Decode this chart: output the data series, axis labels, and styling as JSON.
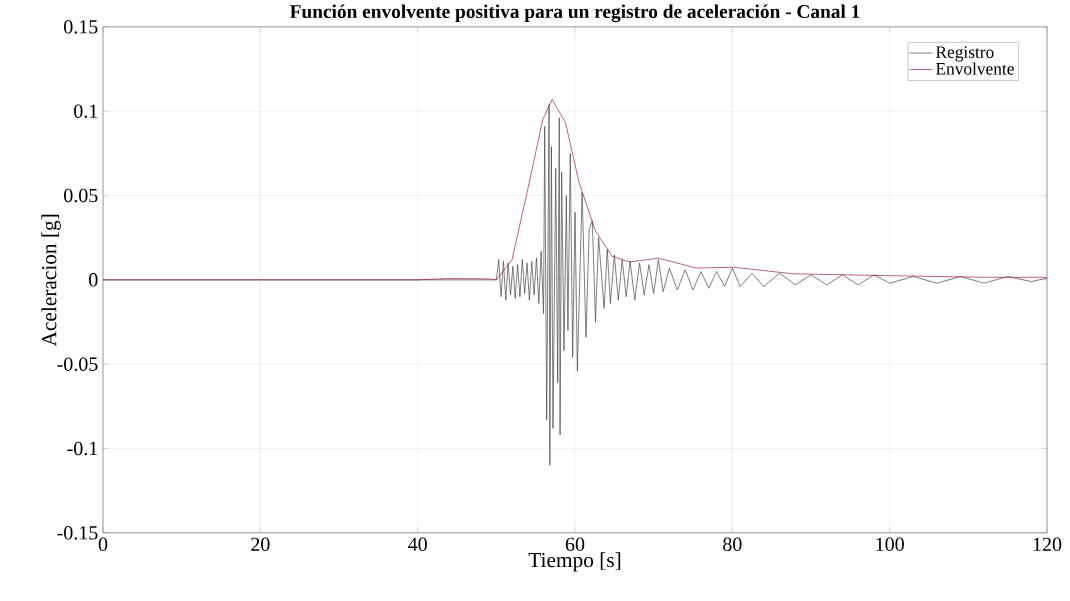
{
  "chart_data": {
    "type": "line",
    "title": "Función envolvente positiva para un registro de aceleración - Canal 1",
    "xlabel": "Tiempo [s]",
    "ylabel": "Aceleracion [g]",
    "xlim": [
      0,
      120
    ],
    "ylim": [
      -0.15,
      0.15
    ],
    "xticks": [
      0,
      20,
      40,
      60,
      80,
      100,
      120
    ],
    "yticks": [
      -0.15,
      -0.1,
      -0.05,
      0,
      0.05,
      0.1,
      0.15
    ],
    "grid": true,
    "legend": "top right",
    "series": [
      {
        "name": "Registro",
        "color": "#404040",
        "x": [
          0,
          38,
          40,
          44,
          48,
          50,
          50.3,
          50.6,
          50.9,
          51.2,
          51.5,
          51.8,
          52.1,
          52.4,
          52.7,
          53.0,
          53.3,
          53.6,
          53.9,
          54.2,
          54.5,
          54.8,
          55.1,
          55.4,
          55.7,
          56.0,
          56.15,
          56.4,
          56.7,
          56.8,
          57.0,
          57.2,
          57.55,
          57.8,
          58.0,
          58.1,
          58.3,
          58.6,
          58.9,
          59.1,
          59.4,
          59.7,
          60.0,
          60.3,
          60.9,
          61.4,
          61.8,
          62.2,
          62.6,
          63.0,
          63.7,
          64.1,
          64.5,
          65.0,
          65.5,
          66.0,
          66.5,
          67.0,
          67.6,
          68.2,
          68.8,
          69.4,
          70.0,
          70.6,
          71.2,
          72.0,
          73.0,
          74.0,
          75.0,
          76.0,
          77.0,
          78.0,
          79.0,
          80.0,
          81.0,
          82.5,
          84.0,
          86.0,
          88.0,
          90.0,
          92.0,
          94.0,
          96.0,
          98.0,
          100.0,
          103.0,
          106.0,
          109.0,
          112.0,
          115.0,
          118.0,
          120.0
        ],
        "values": [
          0,
          0,
          0,
          0,
          0,
          0,
          0.012,
          -0.01,
          0.011,
          -0.012,
          0.01,
          -0.009,
          0.008,
          -0.011,
          0.009,
          -0.01,
          0.012,
          -0.008,
          0.01,
          -0.012,
          0.011,
          -0.009,
          0.013,
          -0.014,
          0.017,
          -0.02,
          0.091,
          -0.083,
          0.104,
          -0.11,
          0.079,
          -0.088,
          0.066,
          -0.061,
          0.096,
          -0.092,
          0.064,
          -0.042,
          0.05,
          -0.03,
          0.075,
          -0.046,
          0.04,
          -0.054,
          0.052,
          -0.034,
          0.03,
          0.035,
          -0.025,
          0.025,
          -0.017,
          0.018,
          -0.014,
          0.015,
          -0.012,
          0.012,
          -0.01,
          0.011,
          -0.012,
          0.01,
          -0.009,
          0.009,
          -0.008,
          0.012,
          -0.007,
          0.007,
          -0.006,
          0.006,
          -0.006,
          0.005,
          -0.005,
          0.005,
          -0.004,
          0.007,
          -0.004,
          0.004,
          -0.004,
          0.004,
          -0.003,
          0.003,
          -0.003,
          0.003,
          -0.003,
          0.003,
          -0.002,
          0.002,
          -0.002,
          0.002,
          -0.002,
          0.002,
          -0.001,
          0.001
        ]
      },
      {
        "name": "Envolvente",
        "color": "#a2142f",
        "x": [
          0,
          40,
          44,
          49,
          50,
          52.0,
          54.2,
          55.9,
          57.1,
          58.8,
          60.5,
          62.6,
          64.7,
          67.0,
          70.6,
          75.4,
          80.1,
          87.7,
          99.6,
          112.3,
          120
        ],
        "values": [
          0,
          0,
          0.0008,
          0.0006,
          0,
          0.012,
          0.058,
          0.095,
          0.107,
          0.093,
          0.058,
          0.029,
          0.014,
          0.0106,
          0.0129,
          0.007,
          0.0075,
          0.0036,
          0.0025,
          0.0015,
          0.0015
        ]
      }
    ]
  }
}
